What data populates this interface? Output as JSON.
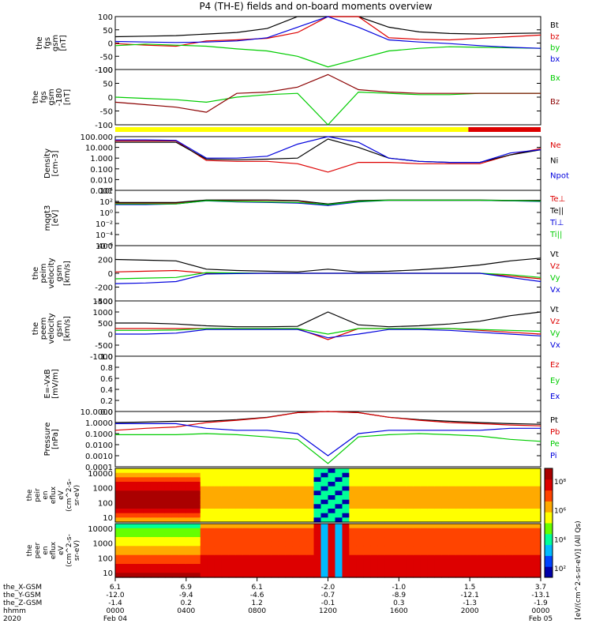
{
  "title": "P4 (TH-E) fields and on-board moments overview",
  "chart_data": {
    "type": "line",
    "panels": [
      {
        "id": "fgs",
        "ylabel": [
          "the",
          "fgs",
          "gsm",
          "[nT]"
        ],
        "ylim": [
          -100,
          100
        ],
        "ticks": [
          "100",
          "50",
          "0",
          "-50",
          "-100"
        ],
        "legend": [
          {
            "name": "Bt",
            "color": "#000000"
          },
          {
            "name": "bz",
            "color": "#dd0000"
          },
          {
            "name": "by",
            "color": "#00cc00"
          },
          {
            "name": "bx",
            "color": "#0000dd"
          }
        ],
        "series": [
          {
            "name": "Bt",
            "color": "#000000",
            "values": [
              24,
              26,
              28,
              34,
              40,
              55,
              100,
              100,
              100,
              60,
              42,
              36,
              34,
              36,
              38
            ]
          },
          {
            "name": "bz",
            "color": "#dd0000",
            "values": [
              -2,
              -8,
              -12,
              8,
              12,
              18,
              40,
              100,
              100,
              20,
              14,
              12,
              18,
              24,
              30
            ]
          },
          {
            "name": "by",
            "color": "#00cc00",
            "values": [
              -10,
              -4,
              -8,
              -12,
              -22,
              -30,
              -50,
              -90,
              -60,
              -30,
              -20,
              -14,
              -16,
              -18,
              -20
            ]
          },
          {
            "name": "bx",
            "color": "#0000dd",
            "values": [
              6,
              4,
              2,
              4,
              8,
              20,
              60,
              100,
              60,
              12,
              4,
              -2,
              -10,
              -16,
              -20
            ]
          }
        ]
      },
      {
        "id": "fgs_fac",
        "ylabel": [
          "the",
          "fgs",
          "gsm",
          "-180",
          "[nT]"
        ],
        "ylim": [
          -120,
          100
        ],
        "ticks": [
          "100",
          "50",
          "0",
          "-50",
          "-100"
        ],
        "legend": [
          {
            "name": "Bx",
            "color": "#00cc00"
          },
          {
            "name": "Bz",
            "color": "#8b0000"
          }
        ],
        "series": [
          {
            "name": "Bx",
            "color": "#00cc00",
            "values": [
              -10,
              -15,
              -20,
              -30,
              -10,
              0,
              5,
              -120,
              10,
              5,
              0,
              0,
              5,
              5,
              5
            ]
          },
          {
            "name": "Bz",
            "color": "#8b0000",
            "values": [
              -30,
              -40,
              -50,
              -70,
              5,
              10,
              30,
              80,
              20,
              10,
              5,
              5,
              5,
              5,
              5
            ]
          }
        ]
      },
      {
        "id": "density",
        "ylabel": [
          "Density",
          "[cm-3]"
        ],
        "log": true,
        "ylim": [
          0.001,
          100
        ],
        "ticks": [
          "100.000",
          "10.000",
          "1.000",
          "0.100",
          "0.010",
          "0.001"
        ],
        "legend": [
          {
            "name": "Ne",
            "color": "#dd0000"
          },
          {
            "name": "Ni",
            "color": "#000000"
          },
          {
            "name": "Npot",
            "color": "#0000dd"
          }
        ],
        "series": [
          {
            "name": "Ne",
            "color": "#dd0000",
            "values": [
              40,
              40,
              40,
              0.6,
              0.5,
              0.5,
              0.3,
              0.05,
              0.4,
              0.4,
              0.3,
              0.3,
              0.3,
              2,
              8
            ]
          },
          {
            "name": "Ni",
            "color": "#000000",
            "values": [
              30,
              30,
              30,
              0.8,
              0.7,
              0.8,
              1.0,
              60,
              10,
              1.0,
              0.5,
              0.4,
              0.4,
              2,
              6
            ]
          },
          {
            "name": "Npot",
            "color": "#0000dd",
            "values": [
              50,
              50,
              45,
              1,
              1,
              1.5,
              20,
              100,
              30,
              1,
              0.5,
              0.4,
              0.4,
              3,
              6
            ]
          }
        ]
      },
      {
        "id": "temperature",
        "ylabel": [
          "mqgt3",
          "[eV]"
        ],
        "log": true,
        "ylim": [
          1e-06,
          100000
        ],
        "ticks": [
          "10⁴",
          "10²",
          "10⁰",
          "10⁻²",
          "10⁻⁴",
          "10⁻⁶"
        ],
        "legend": [
          {
            "name": "Te⊥",
            "color": "#dd0000"
          },
          {
            "name": "Te||",
            "color": "#000000"
          },
          {
            "name": "Ti⊥",
            "color": "#0000dd"
          },
          {
            "name": "Ti||",
            "color": "#00cc00"
          }
        ],
        "series": [
          {
            "name": "Te⊥",
            "color": "#dd0000",
            "values": [
              300,
              300,
              300,
              1000,
              1000,
              1000,
              800,
              100,
              800,
              1000,
              1000,
              1000,
              1000,
              800,
              800
            ]
          },
          {
            "name": "Te||",
            "color": "#000000",
            "values": [
              400,
              400,
              400,
              1200,
              1200,
              1200,
              900,
              200,
              900,
              1200,
              1200,
              1200,
              1200,
              1000,
              1000
            ]
          },
          {
            "name": "Ti⊥",
            "color": "#0000dd",
            "values": [
              150,
              150,
              200,
              800,
              500,
              400,
              300,
              100,
              500,
              1000,
              1000,
              1000,
              1000,
              800,
              600
            ]
          },
          {
            "name": "Ti||",
            "color": "#00cc00",
            "values": [
              200,
              200,
              200,
              900,
              600,
              500,
              400,
              150,
              600,
              1100,
              1100,
              1100,
              1100,
              900,
              700
            ]
          }
        ]
      },
      {
        "id": "peim_velocity",
        "ylabel": [
          "the",
          "peim",
          "velocity",
          "gsm",
          "[km/s]"
        ],
        "ylim": [
          -400,
          400
        ],
        "ticks": [
          "400",
          "200",
          "0",
          "-200",
          "-400"
        ],
        "legend": [
          {
            "name": "Vt",
            "color": "#000000"
          },
          {
            "name": "Vz",
            "color": "#dd0000"
          },
          {
            "name": "Vy",
            "color": "#00cc00"
          },
          {
            "name": "Vx",
            "color": "#0000dd"
          }
        ],
        "series": [
          {
            "name": "Vt",
            "color": "#000000",
            "values": [
              200,
              190,
              180,
              60,
              40,
              30,
              20,
              60,
              20,
              30,
              50,
              80,
              120,
              180,
              220
            ]
          },
          {
            "name": "Vz",
            "color": "#dd0000",
            "values": [
              20,
              30,
              40,
              0,
              0,
              0,
              0,
              0,
              0,
              0,
              0,
              0,
              0,
              -40,
              -80
            ]
          },
          {
            "name": "Vy",
            "color": "#00cc00",
            "values": [
              -80,
              -70,
              -60,
              10,
              5,
              0,
              0,
              0,
              0,
              0,
              0,
              0,
              0,
              -20,
              -60
            ]
          },
          {
            "name": "Vx",
            "color": "#0000dd",
            "values": [
              -150,
              -140,
              -120,
              -10,
              -5,
              0,
              0,
              0,
              0,
              0,
              0,
              0,
              0,
              -60,
              -120
            ]
          }
        ]
      },
      {
        "id": "peem_velocity",
        "ylabel": [
          "the",
          "peem",
          "velocity",
          "gsm",
          "[km/s]"
        ],
        "ylim": [
          -1500,
          1500
        ],
        "ticks": [
          "1500",
          "1000",
          "500",
          "0",
          "-500",
          "-1000"
        ],
        "legend": [
          {
            "name": "Vt",
            "color": "#000000"
          },
          {
            "name": "Vz",
            "color": "#dd0000"
          },
          {
            "name": "Vy",
            "color": "#00cc00"
          },
          {
            "name": "Vx",
            "color": "#0000dd"
          }
        ],
        "series": [
          {
            "name": "Vt",
            "color": "#000000",
            "values": [
              300,
              300,
              250,
              150,
              100,
              100,
              120,
              900,
              200,
              100,
              150,
              250,
              400,
              700,
              900
            ]
          },
          {
            "name": "Vz",
            "color": "#dd0000",
            "values": [
              0,
              0,
              0,
              0,
              0,
              0,
              0,
              -600,
              0,
              0,
              0,
              0,
              -100,
              -200,
              -300
            ]
          },
          {
            "name": "Vy",
            "color": "#00cc00",
            "values": [
              -100,
              -100,
              -80,
              0,
              0,
              0,
              0,
              -300,
              0,
              0,
              0,
              0,
              -50,
              -100,
              -150
            ]
          },
          {
            "name": "Vx",
            "color": "#0000dd",
            "values": [
              -300,
              -300,
              -250,
              -50,
              -50,
              -50,
              -50,
              -500,
              -300,
              -50,
              -50,
              -100,
              -200,
              -300,
              -400
            ]
          }
        ]
      },
      {
        "id": "efield",
        "ylabel": [
          "E=-VxB",
          "[mV/m]"
        ],
        "ylim": [
          0,
          1
        ],
        "ticks": [
          "1.0",
          "0.8",
          "0.6",
          "0.4",
          "0.2",
          "0.0"
        ],
        "legend": [
          {
            "name": "Ez",
            "color": "#dd0000"
          },
          {
            "name": "Ey",
            "color": "#00cc00"
          },
          {
            "name": "Ex",
            "color": "#0000dd"
          }
        ],
        "series": []
      },
      {
        "id": "pressure",
        "ylabel": [
          "Pressure",
          "[nPa]"
        ],
        "log": true,
        "ylim": [
          0.0001,
          10
        ],
        "ticks": [
          "10.0000",
          "1.0000",
          "0.1000",
          "0.0100",
          "0.0010",
          "0.0001"
        ],
        "legend": [
          {
            "name": "Pt",
            "color": "#000000"
          },
          {
            "name": "Pb",
            "color": "#dd0000"
          },
          {
            "name": "Pe",
            "color": "#00cc00"
          },
          {
            "name": "Pi",
            "color": "#0000dd"
          }
        ],
        "series": [
          {
            "name": "Pt",
            "color": "#000000",
            "values": [
              1.0,
              1.1,
              1.3,
              1.3,
              1.8,
              3,
              8,
              10,
              8,
              3,
              1.8,
              1.3,
              1.0,
              0.8,
              0.7
            ]
          },
          {
            "name": "Pb",
            "color": "#dd0000",
            "values": [
              0.2,
              0.3,
              0.4,
              1.0,
              1.6,
              2.8,
              8,
              10,
              8,
              3,
              1.6,
              1.0,
              0.8,
              0.6,
              0.5
            ]
          },
          {
            "name": "Pe",
            "color": "#00cc00",
            "values": [
              0.08,
              0.08,
              0.08,
              0.1,
              0.08,
              0.05,
              0.03,
              0.0002,
              0.05,
              0.08,
              0.1,
              0.08,
              0.06,
              0.03,
              0.02
            ]
          },
          {
            "name": "Pi",
            "color": "#0000dd",
            "values": [
              0.8,
              0.8,
              0.8,
              0.3,
              0.2,
              0.2,
              0.1,
              0.001,
              0.1,
              0.2,
              0.2,
              0.2,
              0.2,
              0.3,
              0.3
            ]
          }
        ]
      }
    ],
    "spectrograms": [
      {
        "id": "peir",
        "ylabel": [
          "the",
          "peir",
          "en",
          "eflux",
          "eV",
          "(cm^2-s-",
          "sr-eV)"
        ],
        "ticks": [
          "10000",
          "1000",
          "100",
          "10"
        ],
        "type": "heatmap"
      },
      {
        "id": "peer",
        "ylabel": [
          "the",
          "peer",
          "en",
          "eflux",
          "eV",
          "(cm^2-s-",
          "sr-eV)"
        ],
        "ticks": [
          "10000",
          "1000",
          "100",
          "10"
        ],
        "type": "heatmap"
      }
    ],
    "colorbar": {
      "ticks": [
        "10⁸",
        "10⁶",
        "10⁴",
        "10²"
      ],
      "label": "[eV/(cm^2-s-sr-eV)] (All Qs)"
    },
    "mode_bar": {
      "colors": [
        "#ffff00",
        "#dd0000"
      ],
      "switch_fraction": 0.83
    },
    "x_axis": {
      "row_labels": [
        "the_X-GSM",
        "the_Y-GSM",
        "the_Z-GSM",
        "hhmm",
        "2020"
      ],
      "columns": [
        [
          "6.1",
          "-12.0",
          "-1.4",
          "0000",
          "Feb 04"
        ],
        [
          "6.9",
          "-9.4",
          "0.2",
          "0400",
          ""
        ],
        [
          "6.1",
          "-4.6",
          "1.2",
          "0800",
          ""
        ],
        [
          "-2.0",
          "-0.7",
          "-0.1",
          "1200",
          ""
        ],
        [
          "-1.0",
          "-8.9",
          "0.3",
          "1600",
          ""
        ],
        [
          "1.5",
          "-12.1",
          "-1.3",
          "2000",
          ""
        ],
        [
          "3.7",
          "-13.1",
          "-1.9",
          "0000",
          "Feb 05"
        ]
      ]
    }
  }
}
